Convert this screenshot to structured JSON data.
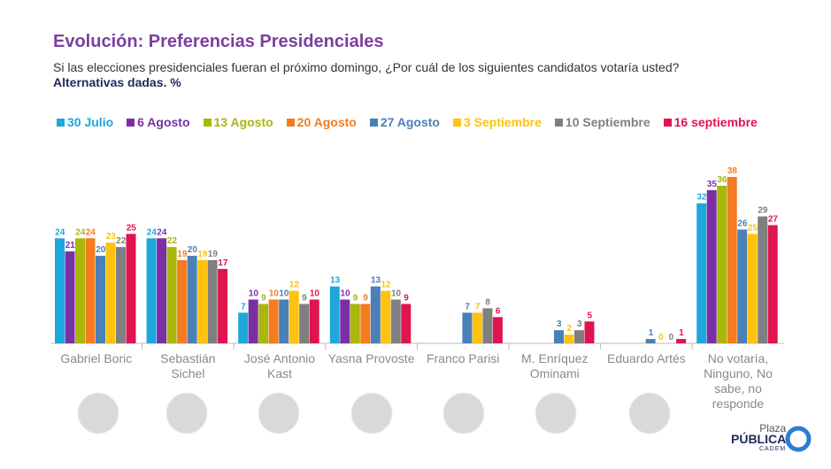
{
  "chart_data": {
    "type": "bar",
    "title": "Evolución: Preferencias Presidenciales",
    "subtitle": "Si las elecciones presidenciales fueran el próximo domingo, ¿Por cuál de los siguientes candidatos votaría usted?",
    "note": "Alternativas dadas. %",
    "categories": [
      "Gabriel Boric",
      "Sebastián Sichel",
      "José Antonio Kast",
      "Yasna Provoste",
      "Franco Parisi",
      "M. Enríquez Ominami",
      "Eduardo Artés",
      "No votaría, Ninguno, No sabe, no responde"
    ],
    "series": [
      {
        "name": "30 Julio",
        "color": "#1ea7dd",
        "values": [
          24,
          24,
          7,
          13,
          null,
          null,
          null,
          32
        ]
      },
      {
        "name": "6 Agosto",
        "color": "#7b2fa5",
        "values": [
          21,
          24,
          10,
          10,
          null,
          null,
          null,
          35
        ]
      },
      {
        "name": "13 Agosto",
        "color": "#a9b70b",
        "values": [
          24,
          22,
          9,
          9,
          null,
          null,
          null,
          36
        ]
      },
      {
        "name": "20 Agosto",
        "color": "#f47b20",
        "values": [
          24,
          19,
          10,
          9,
          null,
          null,
          null,
          38
        ]
      },
      {
        "name": "27 Agosto",
        "color": "#4a80b8",
        "values": [
          20,
          20,
          10,
          13,
          7,
          3,
          1,
          26
        ]
      },
      {
        "name": "3 Septiembre",
        "color": "#ffc20e",
        "values": [
          23,
          19,
          12,
          12,
          7,
          2,
          0,
          25
        ]
      },
      {
        "name": "10 Septiembre",
        "color": "#7f7f7f",
        "values": [
          22,
          19,
          9,
          10,
          8,
          3,
          0,
          29
        ]
      },
      {
        "name": "16 septiembre",
        "color": "#e0144f",
        "values": [
          25,
          17,
          10,
          9,
          6,
          5,
          1,
          27
        ]
      }
    ]
  },
  "logo": {
    "line1": "Plaza",
    "line2": "PÚBLICA",
    "line3": "CADEM"
  }
}
